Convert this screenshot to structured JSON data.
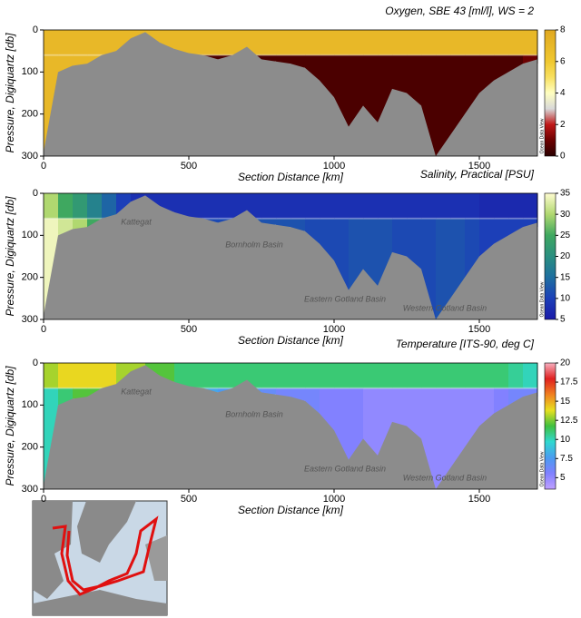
{
  "chart_data": [
    {
      "type": "section",
      "title": "Oxygen, SBE 43 [ml/l], WS = 2",
      "xlabel": "Section Distance [km]",
      "ylabel": "Pressure, Digiquartz [db]",
      "x": [
        0,
        50,
        100,
        150,
        200,
        250,
        300,
        350,
        400,
        450,
        500,
        550,
        600,
        650,
        700,
        750,
        800,
        850,
        900,
        950,
        1000,
        1050,
        1100,
        1150,
        1200,
        1250,
        1300,
        1350,
        1400,
        1450,
        1500,
        1550,
        1600,
        1650,
        1700
      ],
      "bottom": [
        290,
        100,
        85,
        80,
        60,
        50,
        20,
        5,
        30,
        45,
        55,
        60,
        70,
        60,
        40,
        70,
        75,
        80,
        90,
        120,
        160,
        230,
        180,
        220,
        140,
        150,
        180,
        300,
        250,
        200,
        150,
        120,
        100,
        80,
        70
      ],
      "surface": [
        7,
        7,
        7,
        7,
        7,
        7,
        7,
        7,
        7,
        7,
        7,
        7,
        7,
        7,
        7,
        7,
        7,
        7,
        7,
        7,
        7,
        7,
        7,
        7,
        7,
        7,
        7,
        7,
        7,
        7,
        7,
        7,
        7,
        7,
        7
      ],
      "deep": [
        7,
        7,
        7,
        7,
        7,
        7,
        7,
        7,
        7,
        7,
        7,
        0.5,
        0.5,
        0.5,
        0.5,
        0.5,
        0.5,
        0.5,
        0.5,
        0.5,
        0.5,
        0.5,
        0.5,
        0.5,
        0.5,
        0.5,
        0.5,
        0.5,
        0.5,
        0.5,
        0.5,
        0.5,
        0.5,
        1,
        1.5
      ],
      "interface_depth": 60,
      "xlim": [
        0,
        1700
      ],
      "ylim": [
        300,
        0
      ],
      "xticks": [
        0,
        500,
        1000,
        1500
      ],
      "yticks": [
        0,
        100,
        200,
        300
      ],
      "zlim": [
        0,
        8
      ],
      "zticks": [
        0,
        2,
        4,
        6,
        8
      ],
      "colorscale": [
        "#2a0000",
        "#6b0000",
        "#c01818",
        "#d8d8d8",
        "#ffffc0",
        "#f8e060",
        "#f0c830",
        "#e8b828",
        "#e0a820"
      ],
      "annotations": [],
      "watermark": "Ocean Data View"
    },
    {
      "type": "section",
      "title": "Salinity, Practical [PSU]",
      "xlabel": "Section Distance [km]",
      "ylabel": "Pressure, Digiquartz [db]",
      "x": [
        0,
        50,
        100,
        150,
        200,
        250,
        300,
        350,
        400,
        450,
        500,
        550,
        600,
        650,
        700,
        750,
        800,
        850,
        900,
        950,
        1000,
        1050,
        1100,
        1150,
        1200,
        1250,
        1300,
        1350,
        1400,
        1450,
        1500,
        1550,
        1600,
        1650,
        1700
      ],
      "bottom": [
        290,
        100,
        85,
        80,
        60,
        50,
        20,
        5,
        30,
        45,
        55,
        60,
        70,
        60,
        40,
        70,
        75,
        80,
        90,
        120,
        160,
        230,
        180,
        220,
        140,
        150,
        180,
        300,
        250,
        200,
        150,
        120,
        100,
        80,
        70
      ],
      "surface": [
        30,
        25,
        22,
        18,
        14,
        10,
        8,
        8,
        8,
        8,
        8,
        8,
        8,
        8,
        8,
        8,
        8,
        8,
        8,
        8,
        8,
        8,
        8,
        8,
        8,
        8,
        8,
        8,
        8,
        8,
        7,
        7,
        7,
        7,
        7
      ],
      "deep": [
        34,
        32,
        30,
        25,
        20,
        16,
        14,
        13,
        12,
        12,
        11,
        11,
        11,
        11,
        12,
        12,
        12,
        12,
        11,
        11,
        11,
        12,
        12,
        12,
        11,
        11,
        11,
        12,
        12,
        11,
        10,
        10,
        10,
        10,
        10
      ],
      "interface_depth": 60,
      "xlim": [
        0,
        1700
      ],
      "ylim": [
        300,
        0
      ],
      "xticks": [
        0,
        500,
        1000,
        1500
      ],
      "yticks": [
        0,
        100,
        200,
        300
      ],
      "zlim": [
        5,
        35
      ],
      "zticks": [
        5,
        10,
        15,
        20,
        25,
        30,
        35
      ],
      "colorscale": [
        "#1a1aa8",
        "#1c3fb8",
        "#1e6fa0",
        "#2a8f80",
        "#3fa860",
        "#b0d870",
        "#fffcd0"
      ],
      "annotations": [
        "Kattegat",
        "Bornholm Basin",
        "Eastern Gotland Basin",
        "Western Gotland Basin"
      ],
      "watermark": "Ocean Data View"
    },
    {
      "type": "section",
      "title": "Temperature [ITS-90, deg C]",
      "xlabel": "Section Distance [km]",
      "ylabel": "Pressure, Digiquartz [db]",
      "x": [
        0,
        50,
        100,
        150,
        200,
        250,
        300,
        350,
        400,
        450,
        500,
        550,
        600,
        650,
        700,
        750,
        800,
        850,
        900,
        950,
        1000,
        1050,
        1100,
        1150,
        1200,
        1250,
        1300,
        1350,
        1400,
        1450,
        1500,
        1550,
        1600,
        1650,
        1700
      ],
      "bottom": [
        290,
        100,
        85,
        80,
        60,
        50,
        20,
        5,
        30,
        45,
        55,
        60,
        70,
        60,
        40,
        70,
        75,
        80,
        90,
        120,
        160,
        230,
        180,
        220,
        140,
        150,
        180,
        300,
        250,
        200,
        150,
        120,
        100,
        80,
        70
      ],
      "surface": [
        13,
        14,
        14,
        14,
        14,
        13,
        13,
        12,
        12,
        11,
        11,
        11,
        11,
        11,
        11,
        11,
        11,
        11,
        11,
        11,
        11,
        11,
        11,
        11,
        11,
        11,
        11,
        11,
        11,
        11,
        11,
        11,
        10.5,
        10,
        10
      ],
      "deep": [
        10,
        11,
        12,
        12,
        12,
        12,
        12,
        12,
        12,
        11,
        11,
        8,
        7.5,
        7,
        7,
        6.5,
        6,
        6,
        6,
        5.5,
        5.5,
        5.5,
        5,
        5,
        5,
        5,
        5,
        5,
        5,
        5,
        5,
        5.5,
        6,
        6,
        6
      ],
      "interface_depth": 60,
      "xlim": [
        0,
        1700
      ],
      "ylim": [
        300,
        0
      ],
      "xticks": [
        0,
        500,
        1000,
        1500
      ],
      "yticks": [
        0,
        100,
        200,
        300
      ],
      "zlim": [
        3.5,
        20
      ],
      "zticks": [
        5,
        7.5,
        10,
        12.5,
        15,
        17.5,
        20
      ],
      "colorscale": [
        "#c0a0ff",
        "#8080ff",
        "#4a9cf0",
        "#30d8d0",
        "#40c040",
        "#e8e020",
        "#f08020",
        "#e02020",
        "#f8b0c0"
      ],
      "annotations": [
        "Kattegat",
        "Bornholm Basin",
        "Eastern Gotland Basin",
        "Western Gotland Basin"
      ],
      "watermark": "Ocean Data View"
    }
  ]
}
